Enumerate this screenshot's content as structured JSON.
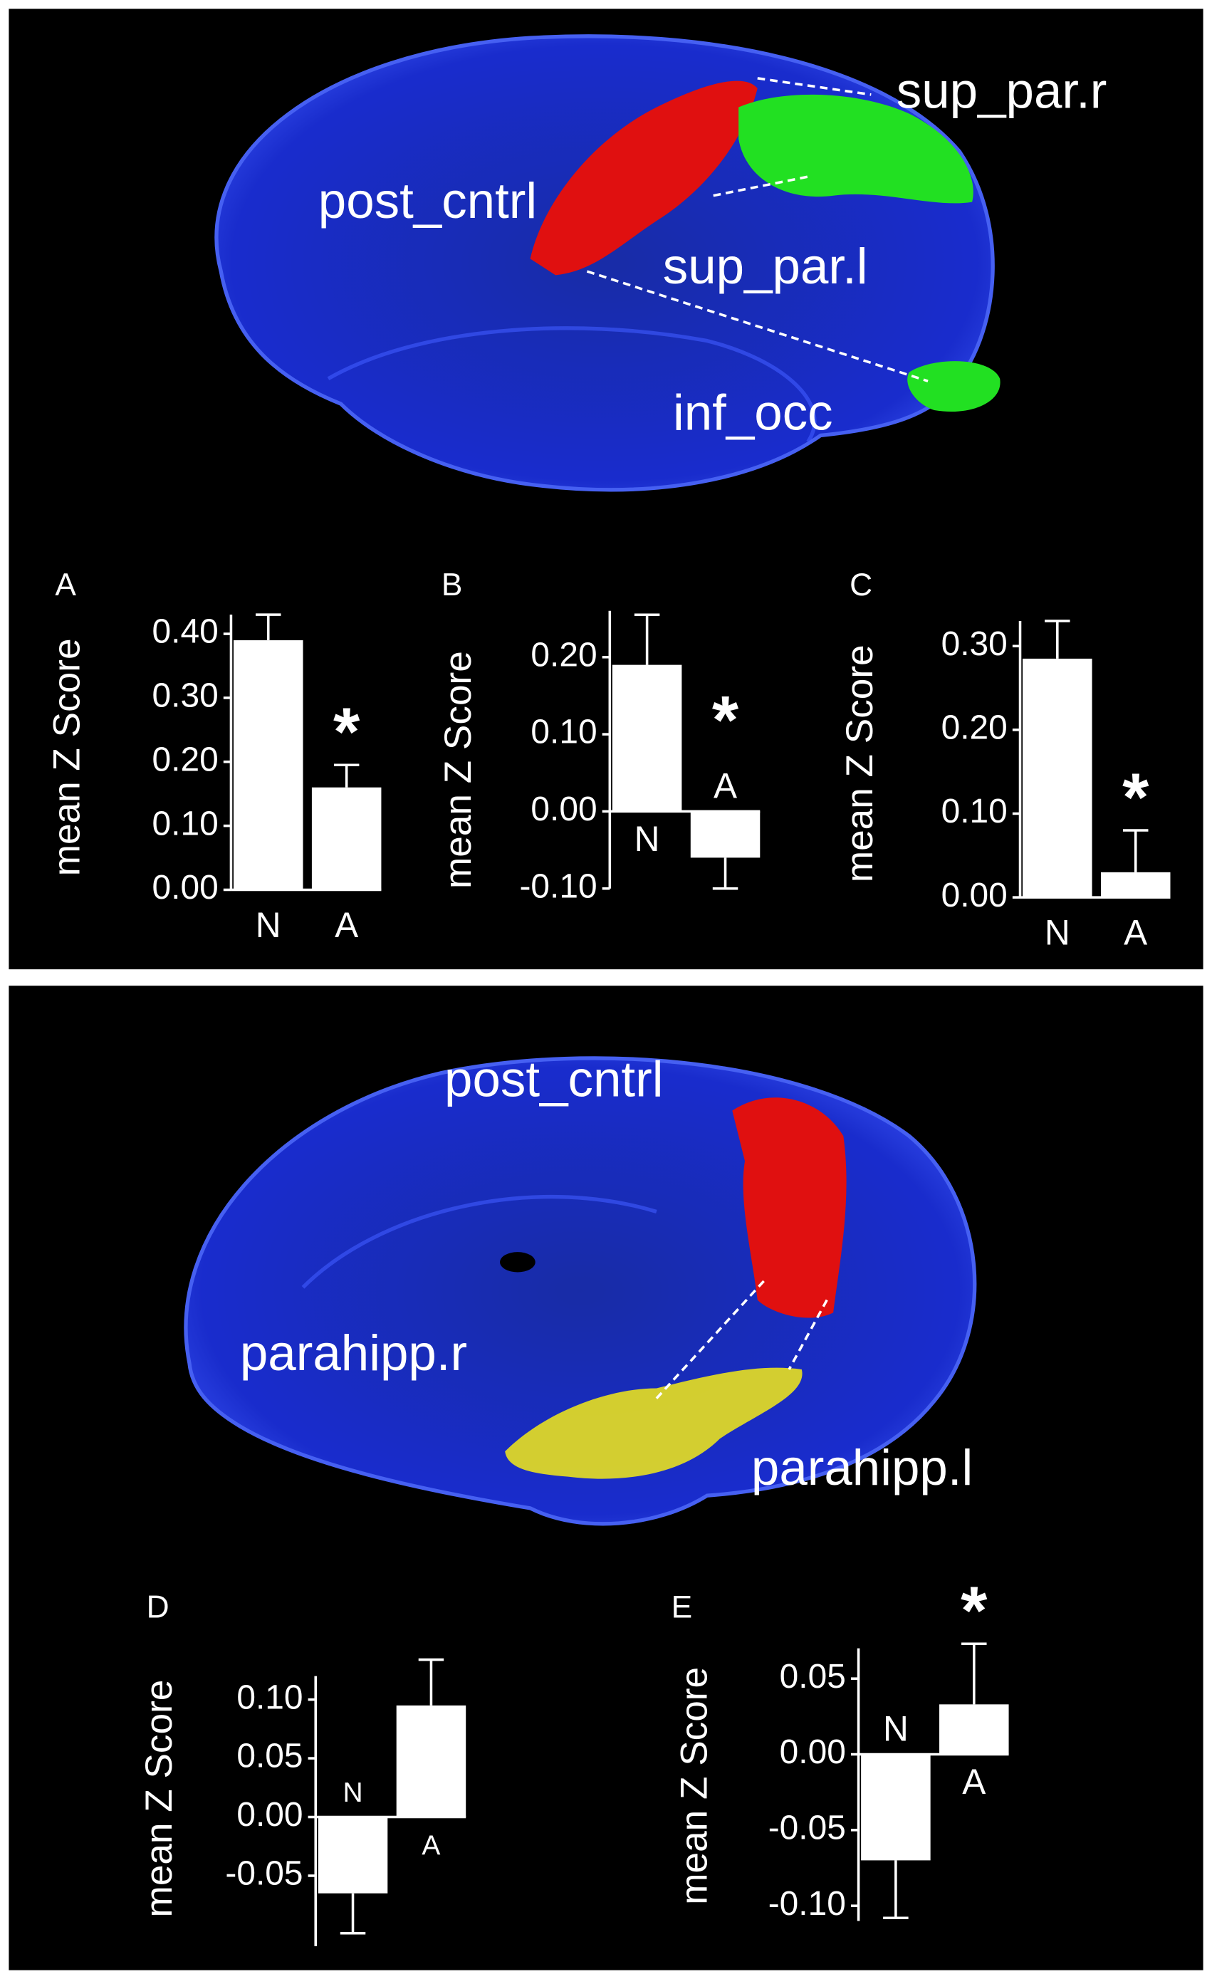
{
  "chart_data": [
    {
      "type": "bar",
      "panel": "A",
      "ylabel": "mean Z Score",
      "categories": [
        "N",
        "A"
      ],
      "values": [
        0.39,
        0.16
      ],
      "errors": [
        0.04,
        0.035
      ],
      "color": "#ffffff",
      "ylim": [
        0,
        0.43
      ],
      "yticks": [
        {
          "value": 0,
          "label": "0.00"
        },
        {
          "value": 0.1,
          "label": "0.10"
        },
        {
          "value": 0.2,
          "label": "0.20"
        },
        {
          "value": 0.3,
          "label": "0.30"
        },
        {
          "value": 0.4,
          "label": "0.40"
        }
      ],
      "annotations": [
        {
          "text": "*",
          "category": "A"
        }
      ]
    },
    {
      "type": "bar",
      "panel": "B",
      "ylabel": "mean Z Score",
      "categories": [
        "N",
        "A"
      ],
      "values": [
        0.19,
        -0.06
      ],
      "errors": [
        0.065,
        0.04
      ],
      "color": "#ffffff",
      "ylim": [
        -0.1,
        0.26
      ],
      "yticks": [
        {
          "value": -0.1,
          "label": "-0.10"
        },
        {
          "value": 0,
          "label": "0.00"
        },
        {
          "value": 0.1,
          "label": "0.10"
        },
        {
          "value": 0.2,
          "label": "0.20"
        }
      ],
      "annotations": [
        {
          "text": "*",
          "category": "A"
        }
      ]
    },
    {
      "type": "bar",
      "panel": "C",
      "ylabel": "mean Z Score",
      "categories": [
        "N",
        "A"
      ],
      "values": [
        0.285,
        0.03
      ],
      "errors": [
        0.045,
        0.05
      ],
      "color": "#ffffff",
      "ylim": [
        0,
        0.33
      ],
      "yticks": [
        {
          "value": 0,
          "label": "0.00"
        },
        {
          "value": 0.1,
          "label": "0.10"
        },
        {
          "value": 0.2,
          "label": "0.20"
        },
        {
          "value": 0.3,
          "label": "0.30"
        }
      ],
      "annotations": [
        {
          "text": "*",
          "category": "A"
        }
      ]
    },
    {
      "type": "bar",
      "panel": "D",
      "ylabel": "mean Z Score",
      "categories": [
        "N",
        "A"
      ],
      "values": [
        -0.065,
        0.095
      ],
      "errors": [
        0.034,
        0.039
      ],
      "color": "#ffffff",
      "ylim": [
        -0.11,
        0.12
      ],
      "yticks": [
        {
          "value": -0.05,
          "label": "-0.05"
        },
        {
          "value": 0,
          "label": "0.00"
        },
        {
          "value": 0.05,
          "label": "0.05"
        },
        {
          "value": 0.1,
          "label": "0.10"
        }
      ]
    },
    {
      "type": "bar",
      "panel": "E",
      "ylabel": "mean Z Score",
      "categories": [
        "N",
        "A"
      ],
      "values": [
        -0.07,
        0.033
      ],
      "errors": [
        0.038,
        0.04
      ],
      "color": "#ffffff",
      "ylim": [
        -0.11,
        0.07
      ],
      "yticks": [
        {
          "value": -0.1,
          "label": "-0.10"
        },
        {
          "value": -0.05,
          "label": "-0.05"
        },
        {
          "value": 0,
          "label": "0.00"
        },
        {
          "value": 0.05,
          "label": "0.05"
        }
      ],
      "annotations": [
        {
          "text": "*",
          "category": "A"
        }
      ]
    }
  ],
  "brain_images": [
    {
      "labels": [
        "sup_par.r",
        "post_cntrl",
        "sup_par.l",
        "inf_occ"
      ]
    },
    {
      "labels": [
        "post_cntrl",
        "parahipp.r",
        "parahipp.l"
      ]
    }
  ]
}
